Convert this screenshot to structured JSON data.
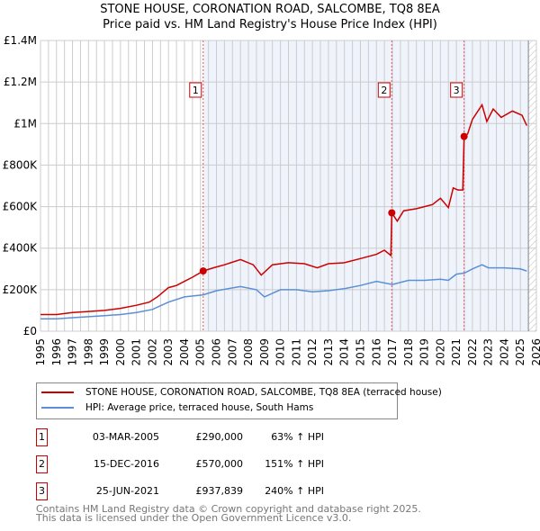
{
  "chart_data": {
    "type": "line",
    "title": "STONE HOUSE, CORONATION ROAD, SALCOMBE, TQ8 8EA",
    "subtitle": "Price paid vs. HM Land Registry's House Price Index (HPI)",
    "xlim": [
      1995,
      2026
    ],
    "ylim": [
      0,
      1400000
    ],
    "x_ticks": [
      "1995",
      "1996",
      "1997",
      "1998",
      "1999",
      "2000",
      "2001",
      "2002",
      "2003",
      "2004",
      "2005",
      "2006",
      "2007",
      "2008",
      "2009",
      "2010",
      "2011",
      "2012",
      "2013",
      "2014",
      "2015",
      "2016",
      "2017",
      "2018",
      "2019",
      "2020",
      "2021",
      "2022",
      "2023",
      "2024",
      "2025",
      "2026"
    ],
    "y_ticks": [
      {
        "v": 0,
        "label": "£0"
      },
      {
        "v": 200000,
        "label": "£200K"
      },
      {
        "v": 400000,
        "label": "£400K"
      },
      {
        "v": 600000,
        "label": "£600K"
      },
      {
        "v": 800000,
        "label": "£800K"
      },
      {
        "v": 1000000,
        "label": "£1M"
      },
      {
        "v": 1200000,
        "label": "£1.2M"
      },
      {
        "v": 1400000,
        "label": "£1.4M"
      }
    ],
    "grid": true,
    "series": [
      {
        "name": "STONE HOUSE, CORONATION ROAD, SALCOMBE, TQ8 8EA (terraced house)",
        "color": "#cc0000",
        "x": [
          1995,
          1996,
          1997,
          1998,
          1999,
          2000,
          2001,
          2001.8,
          2002.3,
          2003,
          2003.5,
          2004,
          2004.5,
          2005.17,
          2005.8,
          2006.5,
          2007.5,
          2008.3,
          2008.8,
          2009.5,
          2010.5,
          2011.5,
          2012.3,
          2013,
          2014,
          2015,
          2016,
          2016.5,
          2016.9,
          2016.96,
          2017.3,
          2017.7,
          2018.5,
          2019.5,
          2020,
          2020.5,
          2020.8,
          2021.1,
          2021.4,
          2021.48,
          2021.7,
          2022,
          2022.6,
          2022.9,
          2023.3,
          2023.8,
          2024.5,
          2025.1,
          2025.4
        ],
        "values": [
          80000,
          80000,
          90000,
          95000,
          100000,
          110000,
          125000,
          140000,
          165000,
          210000,
          220000,
          240000,
          260000,
          290000,
          305000,
          320000,
          345000,
          320000,
          270000,
          320000,
          330000,
          325000,
          305000,
          325000,
          330000,
          350000,
          370000,
          390000,
          365000,
          570000,
          530000,
          580000,
          590000,
          610000,
          640000,
          595000,
          690000,
          680000,
          680000,
          937839,
          950000,
          1020000,
          1090000,
          1010000,
          1070000,
          1030000,
          1060000,
          1040000,
          990000
        ]
      },
      {
        "name": "HPI: Average price, terraced house, South Hams",
        "color": "#5b8fd6",
        "x": [
          1995,
          1996,
          1997,
          1998,
          1999,
          2000,
          2001,
          2002,
          2003,
          2004,
          2005.17,
          2006,
          2007.5,
          2008.5,
          2009,
          2010,
          2011,
          2012,
          2013,
          2014,
          2015,
          2016,
          2017,
          2018,
          2019,
          2020,
          2020.5,
          2021,
          2021.5,
          2022,
          2022.6,
          2023,
          2024,
          2025,
          2025.4
        ],
        "values": [
          60000,
          60000,
          65000,
          70000,
          75000,
          80000,
          90000,
          105000,
          140000,
          165000,
          175000,
          195000,
          215000,
          200000,
          165000,
          200000,
          200000,
          190000,
          195000,
          205000,
          220000,
          240000,
          225000,
          245000,
          245000,
          250000,
          245000,
          275000,
          280000,
          300000,
          320000,
          305000,
          305000,
          300000,
          290000
        ]
      }
    ],
    "sales": [
      {
        "n": "1",
        "x": 2005.17,
        "value": 290000,
        "date": "03-MAR-2005",
        "price": "£290,000",
        "hpi": "63% ↑ HPI"
      },
      {
        "n": "2",
        "x": 2016.96,
        "value": 570000,
        "date": "15-DEC-2016",
        "price": "£570,000",
        "hpi": "151% ↑ HPI"
      },
      {
        "n": "3",
        "x": 2021.48,
        "value": 937839,
        "date": "25-JUN-2021",
        "price": "£937,839",
        "hpi": "240% ↑ HPI"
      }
    ],
    "shade_from": 2005.17,
    "hatch_from": 2025.5
  },
  "footer": {
    "line1": "Contains HM Land Registry data © Crown copyright and database right 2025.",
    "line2": "This data is licensed under the Open Government Licence v3.0."
  }
}
